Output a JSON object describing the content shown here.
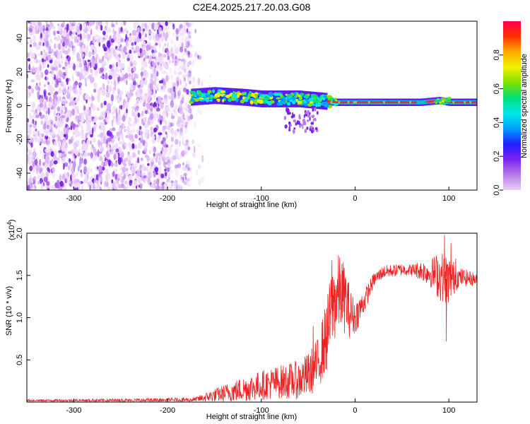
{
  "title": "C2E4.2025.217.20.03.G08",
  "chart_data": [
    {
      "type": "heatmap",
      "xlabel": "Height of straight line (km)",
      "ylabel": "Frequency (Hz)",
      "xlim": [
        -350,
        130
      ],
      "ylim": [
        -50,
        50
      ],
      "xticks": [
        -300,
        -200,
        -100,
        0,
        100
      ],
      "xtick_labels": [
        "-300",
        "-200",
        "-100",
        "0",
        "100"
      ],
      "yticks": [
        -40,
        -20,
        0,
        20,
        40
      ],
      "ytick_labels": [
        "-40",
        "-20",
        "0",
        "20",
        "40"
      ],
      "colorbar": {
        "label": "Normalized spectral amplitude",
        "range": [
          0,
          1
        ],
        "ticks": [
          0.0,
          0.2,
          0.4,
          0.6,
          0.8
        ],
        "tick_labels": [
          "0.0",
          "0.2",
          "0.4",
          "0.6",
          "0.8"
        ],
        "colors": [
          "#e9d0f7",
          "#b77be6",
          "#7a22f0",
          "#1f1fff",
          "#00a0ff",
          "#00e8e8",
          "#00e07a",
          "#7ee000",
          "#f2f200",
          "#ffaa00",
          "#ff3000",
          "#ff0050"
        ]
      },
      "regions": {
        "noise_x": [
          -350,
          -175
        ],
        "noise_y": [
          -50,
          50
        ],
        "signal_band_x": [
          -175,
          130
        ],
        "signal_center_hz": [
          [
            -175,
            5
          ],
          [
            -150,
            6
          ],
          [
            -120,
            5
          ],
          [
            -100,
            4
          ],
          [
            -80,
            4
          ],
          [
            -60,
            4
          ],
          [
            -40,
            3
          ],
          [
            -20,
            2
          ],
          [
            0,
            2
          ],
          [
            40,
            2
          ],
          [
            70,
            2
          ],
          [
            90,
            3
          ],
          [
            100,
            2
          ],
          [
            130,
            2
          ]
        ]
      }
    },
    {
      "type": "line",
      "xlabel": "Height of straight line (km)",
      "ylabel": "SNR (10 * v/v)",
      "y_multiplier_label": "(x10",
      "y_multiplier_exp": "4",
      "y_multiplier_close": ")",
      "xlim": [
        -350,
        130
      ],
      "ylim": [
        0,
        20000
      ],
      "xticks": [
        -300,
        -200,
        -100,
        0,
        100
      ],
      "xtick_labels": [
        "-300",
        "-200",
        "-100",
        "0",
        "100"
      ],
      "yticks": [
        5000,
        10000,
        15000,
        20000
      ],
      "ytick_labels": [
        "0.5",
        "1.0",
        "1.5",
        "2.0"
      ],
      "series": [
        {
          "color": "#ee2222",
          "envelope_x": [
            -350,
            -200,
            -170,
            -150,
            -120,
            -100,
            -80,
            -60,
            -50,
            -40,
            -30,
            -25,
            -20,
            -15,
            -10,
            -5,
            0,
            10,
            20,
            30,
            50,
            70,
            80,
            90,
            95,
            100,
            110,
            120,
            130
          ],
          "envelope_y": [
            200,
            200,
            300,
            800,
            1500,
            2000,
            2400,
            2600,
            3200,
            4500,
            8000,
            11000,
            12500,
            13000,
            12000,
            10500,
            10000,
            12000,
            14500,
            15400,
            15700,
            15600,
            15300,
            15000,
            14700,
            14500,
            14800,
            14700,
            14500
          ],
          "spread_x": [
            -350,
            -170,
            -120,
            -80,
            -60,
            -40,
            -30,
            -20,
            -10,
            0,
            20,
            60,
            80,
            90,
            100,
            110,
            130
          ],
          "spread_y": [
            100,
            300,
            1500,
            2000,
            2300,
            3000,
            4500,
            5000,
            4000,
            2000,
            800,
            700,
            1600,
            3000,
            3000,
            1200,
            700
          ],
          "spikes": [
            [
              -25,
              16800
            ],
            [
              -45,
              9000
            ],
            [
              95,
              19800
            ],
            [
              97,
              7200
            ],
            [
              102,
              18800
            ],
            [
              107,
              17000
            ]
          ]
        }
      ]
    }
  ]
}
